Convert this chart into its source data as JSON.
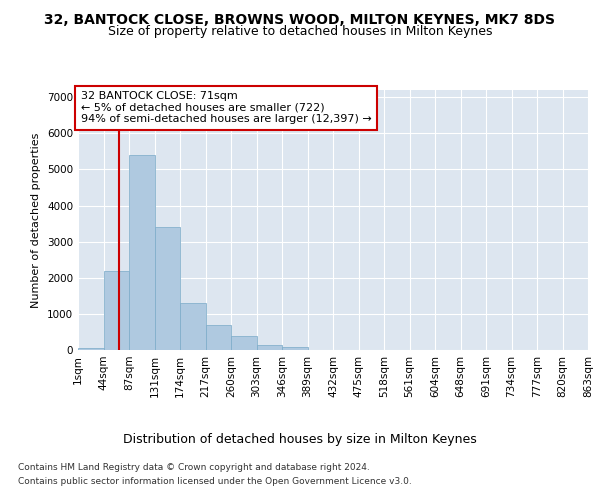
{
  "title1": "32, BANTOCK CLOSE, BROWNS WOOD, MILTON KEYNES, MK7 8DS",
  "title2": "Size of property relative to detached houses in Milton Keynes",
  "xlabel": "Distribution of detached houses by size in Milton Keynes",
  "ylabel": "Number of detached properties",
  "footnote1": "Contains HM Land Registry data © Crown copyright and database right 2024.",
  "footnote2": "Contains public sector information licensed under the Open Government Licence v3.0.",
  "annotation_line1": "32 BANTOCK CLOSE: 71sqm",
  "annotation_line2": "← 5% of detached houses are smaller (722)",
  "annotation_line3": "94% of semi-detached houses are larger (12,397) →",
  "bar_color": "#afc9e0",
  "bar_edge_color": "#7aaac8",
  "bg_color": "#dde6f0",
  "vline_color": "#cc0000",
  "annotation_box_edge_color": "#cc0000",
  "tick_labels": [
    "1sqm",
    "44sqm",
    "87sqm",
    "131sqm",
    "174sqm",
    "217sqm",
    "260sqm",
    "303sqm",
    "346sqm",
    "389sqm",
    "432sqm",
    "475sqm",
    "518sqm",
    "561sqm",
    "604sqm",
    "648sqm",
    "691sqm",
    "734sqm",
    "777sqm",
    "820sqm",
    "863sqm"
  ],
  "bar_values": [
    50,
    2200,
    5400,
    3400,
    1300,
    700,
    380,
    150,
    95,
    0,
    0,
    0,
    0,
    0,
    0,
    0,
    0,
    0,
    0,
    0
  ],
  "ylim": [
    0,
    7200
  ],
  "yticks": [
    0,
    1000,
    2000,
    3000,
    4000,
    5000,
    6000,
    7000
  ],
  "vline_x": 1.62,
  "n_bars": 20,
  "title1_fontsize": 10,
  "title2_fontsize": 9,
  "xlabel_fontsize": 9,
  "ylabel_fontsize": 8,
  "tick_fontsize": 7.5,
  "annotation_fontsize": 8,
  "footnote_fontsize": 6.5
}
